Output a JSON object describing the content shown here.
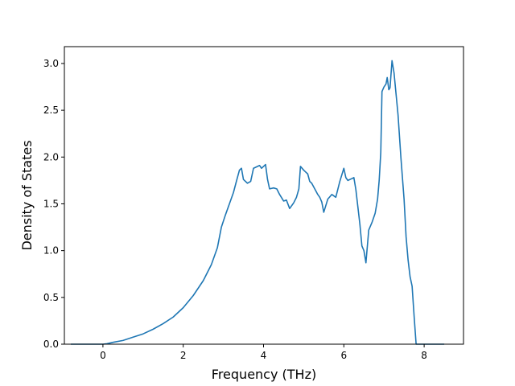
{
  "chart_data": {
    "type": "line",
    "title": "",
    "xlabel": "Frequency (THz)",
    "ylabel": "Density of States",
    "xlim": [
      -0.96,
      8.98
    ],
    "ylim": [
      0.0,
      3.18
    ],
    "xticks": [
      0,
      2,
      4,
      6,
      8
    ],
    "xtick_labels": [
      "0",
      "2",
      "4",
      "6",
      "8"
    ],
    "yticks": [
      0.0,
      0.5,
      1.0,
      1.5,
      2.0,
      2.5,
      3.0
    ],
    "ytick_labels": [
      "0.0",
      "0.5",
      "1.0",
      "1.5",
      "2.0",
      "2.5",
      "3.0"
    ],
    "grid": false,
    "legend": "none",
    "series": [
      {
        "color": "#1f77b4",
        "x": [
          -0.8,
          -0.4,
          0.0,
          0.1,
          0.25,
          0.5,
          0.75,
          1.0,
          1.25,
          1.5,
          1.75,
          2.0,
          2.25,
          2.5,
          2.7,
          2.85,
          2.95,
          3.05,
          3.15,
          3.25,
          3.33,
          3.4,
          3.45,
          3.5,
          3.6,
          3.68,
          3.75,
          3.8,
          3.9,
          3.95,
          4.0,
          4.05,
          4.1,
          4.15,
          4.25,
          4.33,
          4.4,
          4.5,
          4.57,
          4.65,
          4.75,
          4.82,
          4.88,
          4.92,
          5.0,
          5.05,
          5.1,
          5.15,
          5.2,
          5.3,
          5.35,
          5.4,
          5.45,
          5.5,
          5.55,
          5.6,
          5.7,
          5.8,
          5.9,
          6.0,
          6.05,
          6.1,
          6.2,
          6.25,
          6.3,
          6.4,
          6.45,
          6.5,
          6.55,
          6.62,
          6.7,
          6.78,
          6.84,
          6.88,
          6.92,
          6.95,
          7.0,
          7.05,
          7.08,
          7.12,
          7.15,
          7.2,
          7.25,
          7.35,
          7.42,
          7.5,
          7.55,
          7.6,
          7.65,
          7.7,
          7.75,
          7.8,
          8.0,
          8.5
        ],
        "y": [
          0.0,
          0.0,
          0.0,
          0.005,
          0.02,
          0.04,
          0.075,
          0.11,
          0.16,
          0.22,
          0.29,
          0.39,
          0.52,
          0.68,
          0.85,
          1.03,
          1.25,
          1.38,
          1.5,
          1.62,
          1.75,
          1.86,
          1.88,
          1.76,
          1.72,
          1.74,
          1.88,
          1.89,
          1.91,
          1.88,
          1.9,
          1.92,
          1.76,
          1.66,
          1.67,
          1.66,
          1.6,
          1.53,
          1.54,
          1.45,
          1.51,
          1.57,
          1.66,
          1.9,
          1.86,
          1.84,
          1.82,
          1.74,
          1.72,
          1.64,
          1.6,
          1.57,
          1.52,
          1.41,
          1.48,
          1.55,
          1.6,
          1.57,
          1.74,
          1.88,
          1.78,
          1.75,
          1.77,
          1.78,
          1.65,
          1.28,
          1.05,
          1.0,
          0.87,
          1.22,
          1.3,
          1.4,
          1.55,
          1.75,
          2.05,
          2.7,
          2.75,
          2.78,
          2.85,
          2.72,
          2.74,
          3.03,
          2.9,
          2.45,
          2.0,
          1.55,
          1.15,
          0.9,
          0.72,
          0.62,
          0.3,
          0.0,
          0.0,
          0.0
        ]
      }
    ]
  }
}
